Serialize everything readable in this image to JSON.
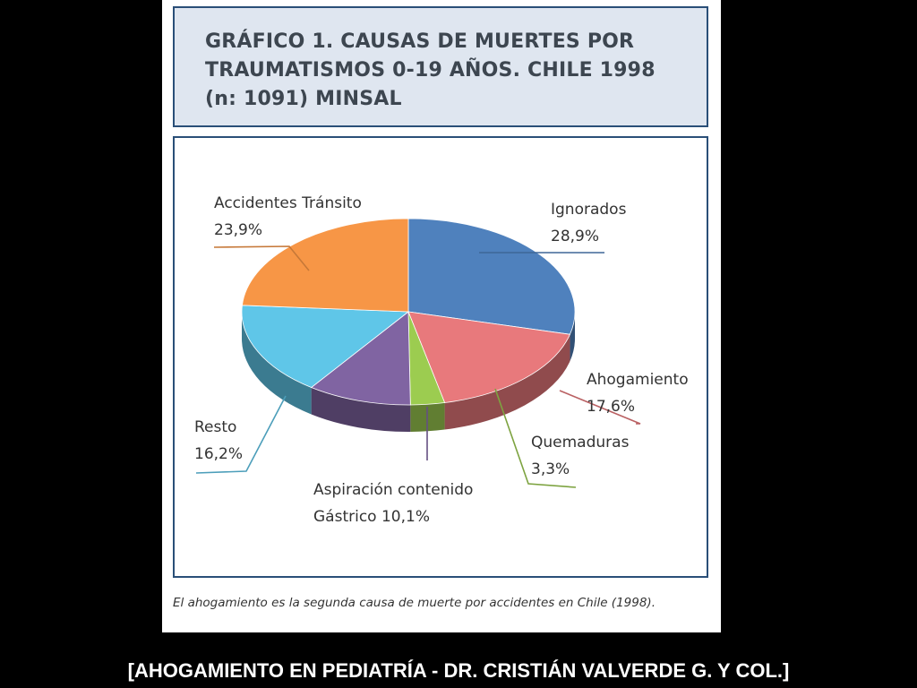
{
  "slide": {
    "footer": "[AHOGAMIENTO EN PEDIATRÍA - DR. CRISTIÁN VALVERDE G. Y COL.]"
  },
  "chart_data": {
    "type": "pie",
    "title_lines": [
      "GRÁFICO 1. CAUSAS DE MUERTES POR",
      "TRAUMATISMOS 0-19 AÑOS. CHILE 1998",
      "(n: 1091) MINSAL"
    ],
    "caption": "El ahogamiento es la segunda causa de muerte por accidentes en Chile (1998).",
    "slices": [
      {
        "name": "Ignorados",
        "pct_label": "28,9%",
        "value": 28.9,
        "color": "#4f81bd"
      },
      {
        "name": "Ahogamiento",
        "pct_label": "17,6%",
        "value": 17.6,
        "color": "#e8797c"
      },
      {
        "name": "Quemaduras",
        "pct_label": "3,3%",
        "value": 3.3,
        "color": "#9ccc50"
      },
      {
        "name": "Aspiración contenido",
        "name_line2": "Gástrico 10,1%",
        "pct_label": "",
        "value": 10.1,
        "color": "#8064a2"
      },
      {
        "name": "Resto",
        "pct_label": "16,2%",
        "value": 16.2,
        "color": "#5fc6e8"
      },
      {
        "name": "Accidentes Tránsito",
        "pct_label": "23,9%",
        "value": 23.9,
        "color": "#f79646"
      }
    ]
  }
}
